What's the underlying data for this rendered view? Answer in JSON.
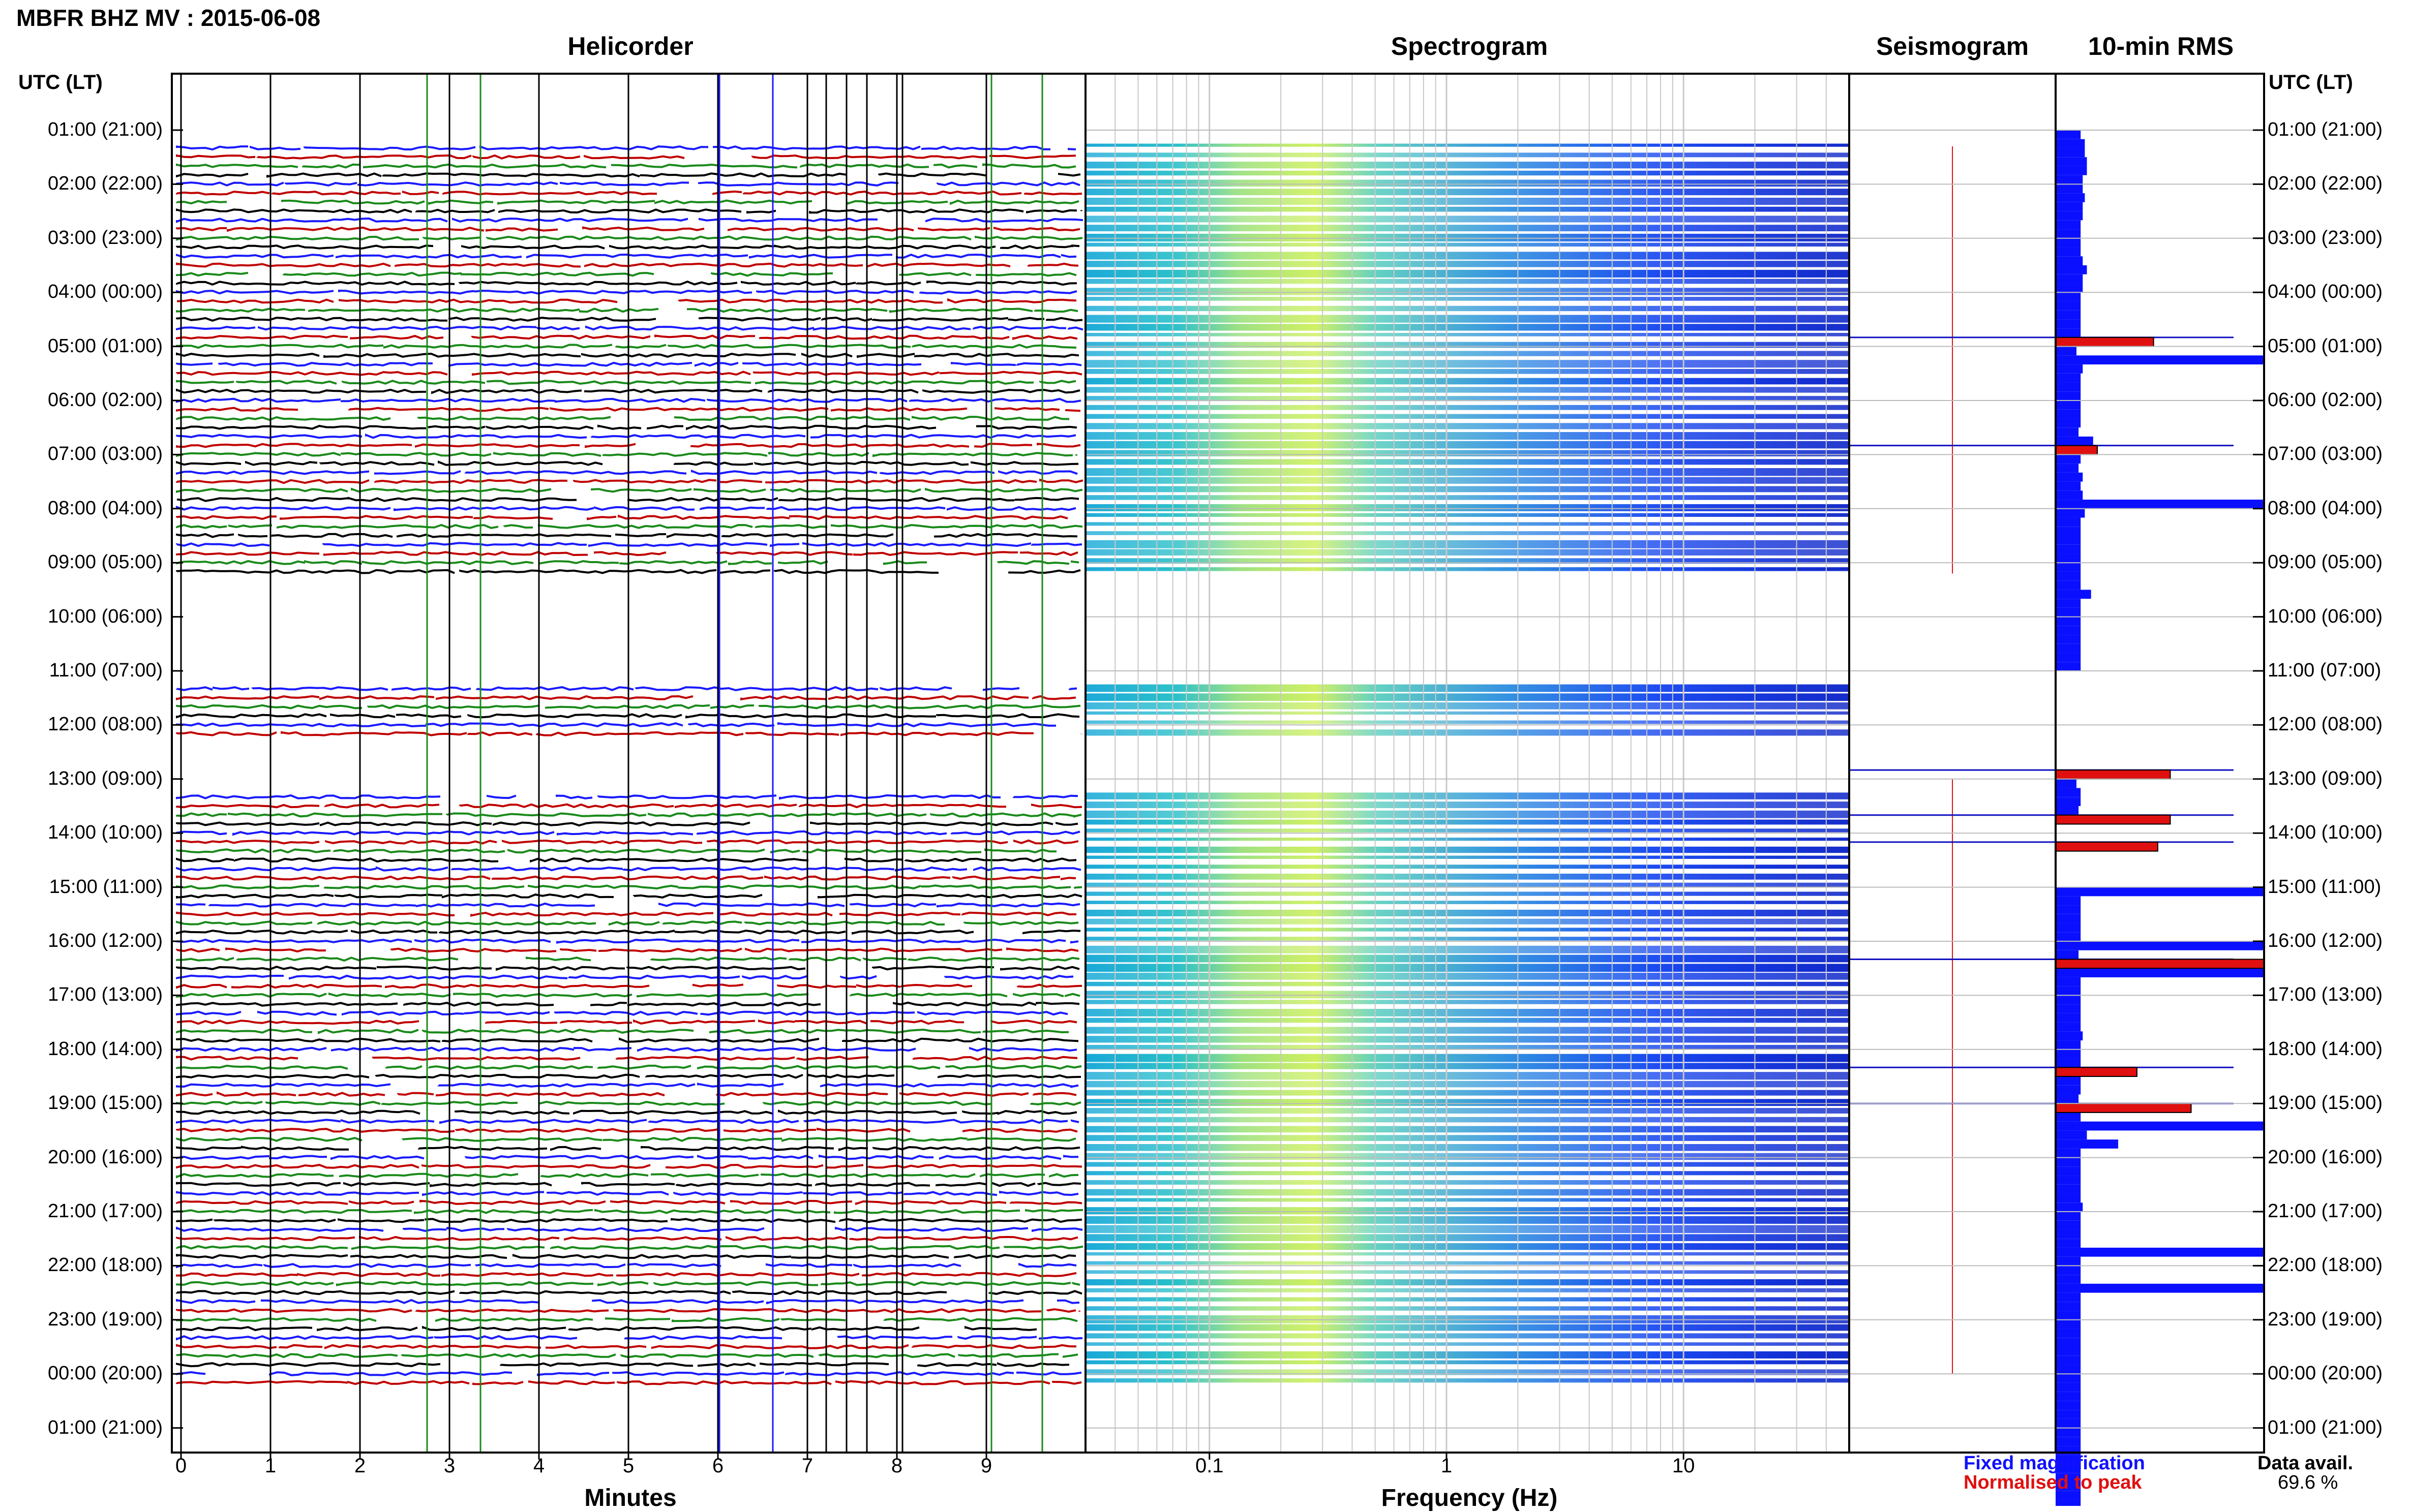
{
  "title": "MBFR BHZ MV : 2015-06-08",
  "panels": {
    "helicorder": "Helicorder",
    "spectrogram": "Spectrogram",
    "seismogram": "Seismogram",
    "rms": "10-min RMS"
  },
  "axes": {
    "time_header": "UTC (LT)",
    "minutes_label": "Minutes",
    "frequency_label": "Frequency (Hz)",
    "minute_ticks": [
      "0",
      "1",
      "2",
      "3",
      "4",
      "5",
      "6",
      "7",
      "8",
      "9"
    ],
    "frequency_ticks": [
      "0.1",
      "1",
      "10"
    ]
  },
  "legend": {
    "fixed": "Fixed magnification",
    "normalised": "Normalised to peak"
  },
  "availability": {
    "label": "Data avail.",
    "value": "69.6 %"
  },
  "colors": {
    "trace_cycle": [
      "#1a1aff",
      "#c00000",
      "#1a8a1a",
      "#000000"
    ],
    "fixed": "#0a10ff",
    "normalised": "#e01010"
  },
  "chart_data": {
    "type": "helicorder-spectrogram-rms",
    "time_labels": [
      "01:00 (21:00)",
      "02:00 (22:00)",
      "03:00 (23:00)",
      "04:00 (00:00)",
      "05:00 (01:00)",
      "06:00 (02:00)",
      "07:00 (03:00)",
      "08:00 (04:00)",
      "09:00 (05:00)",
      "10:00 (06:00)",
      "11:00 (07:00)",
      "12:00 (08:00)",
      "13:00 (09:00)",
      "14:00 (10:00)",
      "15:00 (11:00)",
      "16:00 (12:00)",
      "17:00 (13:00)",
      "18:00 (14:00)",
      "19:00 (15:00)",
      "20:00 (16:00)",
      "21:00 (17:00)",
      "22:00 (18:00)",
      "23:00 (19:00)",
      "00:00 (20:00)",
      "01:00 (21:00)"
    ],
    "helicorder_x_range_minutes": [
      0,
      10
    ],
    "frequency_range_hz": [
      0.03,
      50
    ],
    "frequency_scale": "log",
    "data_gaps_utc_hours": [
      [
        9.0,
        11.0
      ],
      [
        12.0,
        13.0
      ]
    ],
    "rms_start_hour": 1,
    "rms_bin_minutes": 10,
    "rms_values": [
      0.12,
      0.14,
      0.14,
      0.15,
      0.15,
      0.13,
      0.13,
      0.14,
      0.13,
      0.13,
      0.12,
      0.12,
      0.12,
      0.12,
      0.13,
      0.15,
      0.13,
      0.13,
      0.12,
      0.12,
      0.12,
      0.12,
      0.12,
      0.13,
      0.1,
      1.0,
      0.13,
      0.12,
      0.12,
      0.12,
      0.12,
      0.12,
      0.12,
      0.11,
      0.18,
      0.12,
      0.12,
      0.11,
      0.13,
      0.12,
      0.13,
      1.0,
      0.14,
      0.12,
      0.12,
      0.12,
      0.12,
      0.12,
      0.12,
      0.12,
      0.12,
      0.17,
      0.12,
      0.12,
      0.12,
      0.12,
      0.12,
      0.12,
      0.12,
      0.12,
      null,
      null,
      null,
      null,
      null,
      null,
      null,
      null,
      null,
      null,
      null,
      null,
      0.1,
      0.12,
      0.12,
      0.11,
      0.11,
      null,
      null,
      null,
      null,
      null,
      null,
      null,
      1.0,
      0.12,
      0.12,
      0.12,
      0.12,
      0.12,
      1.0,
      0.11,
      0.12,
      1.0,
      0.12,
      0.12,
      0.12,
      0.12,
      0.12,
      0.12,
      0.13,
      0.12,
      0.12,
      0.12,
      0.12,
      0.12,
      0.12,
      0.11,
      0.12,
      0.12,
      1.0,
      0.15,
      0.3,
      0.12,
      0.12,
      0.12,
      0.12,
      0.12,
      0.12,
      0.13,
      0.12,
      0.12,
      0.12,
      0.12,
      1.0,
      0.12,
      0.12,
      0.12,
      1.0,
      0.12,
      0.12,
      0.12,
      0.12,
      0.12,
      0.12,
      0.12,
      0.12,
      0.12,
      0.12,
      0.12,
      0.12,
      0.12,
      0.12,
      0.12,
      0.12,
      0.12,
      0.12,
      0.12,
      0.12,
      0.12,
      0.12,
      0.12,
      0.12,
      0.12,
      0.12,
      0.12
    ],
    "rms_peak_events_utc": [
      "04:50",
      "06:50",
      "12:50",
      "13:40",
      "14:10",
      "16:20",
      "18:20",
      "19:00"
    ],
    "rms_peak_fraction_normalised": [
      0.47,
      0.2,
      0.55,
      0.55,
      0.49,
      1.0,
      0.39,
      0.65
    ],
    "data_available_percent": 69.6
  }
}
